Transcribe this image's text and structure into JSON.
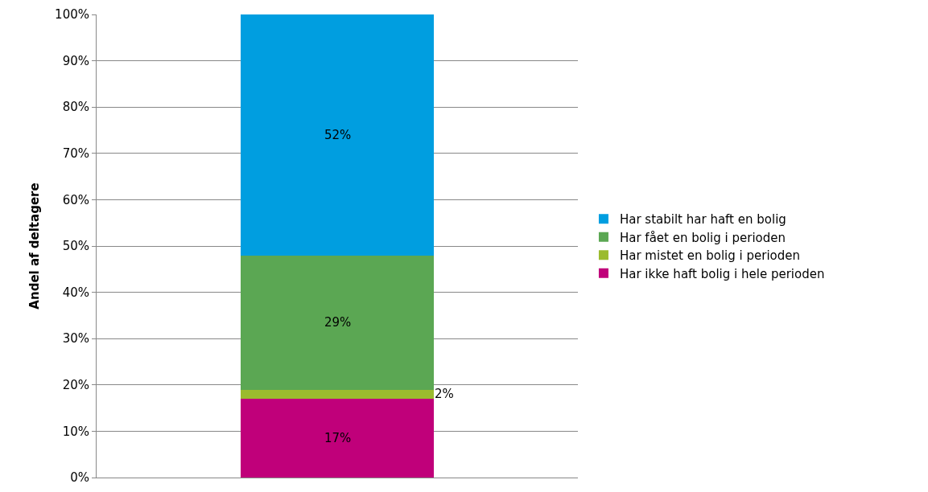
{
  "chart_data": {
    "type": "bar",
    "stacked": true,
    "ylabel": "Andel af deltagere",
    "categories": [
      null
    ],
    "series": [
      {
        "name": "Har ikke haft bolig i hele perioden",
        "color": "#c0007a",
        "values": [
          17
        ],
        "value_labels": [
          "17%"
        ]
      },
      {
        "name": "Har mistet en bolig i perioden",
        "color": "#9bbb2e",
        "values": [
          2
        ],
        "value_labels": [
          "2%"
        ]
      },
      {
        "name": "Har fået en bolig i perioden",
        "color": "#5ba753",
        "values": [
          29
        ],
        "value_labels": [
          "29%"
        ]
      },
      {
        "name": "Har stabilt har haft en bolig",
        "color": "#009ee0",
        "values": [
          52
        ],
        "value_labels": [
          "52%"
        ]
      }
    ],
    "ylim": [
      0,
      100
    ],
    "yticks": [
      {
        "value": 0,
        "label": "0%"
      },
      {
        "value": 10,
        "label": "10%"
      },
      {
        "value": 20,
        "label": "20%"
      },
      {
        "value": 30,
        "label": "30%"
      },
      {
        "value": 40,
        "label": "40%"
      },
      {
        "value": 50,
        "label": "50%"
      },
      {
        "value": 60,
        "label": "60%"
      },
      {
        "value": 70,
        "label": "70%"
      },
      {
        "value": 80,
        "label": "80%"
      },
      {
        "value": 90,
        "label": "90%"
      },
      {
        "value": 100,
        "label": "100%"
      }
    ],
    "grid": "y",
    "legend": "right",
    "tick_labels": "y"
  }
}
